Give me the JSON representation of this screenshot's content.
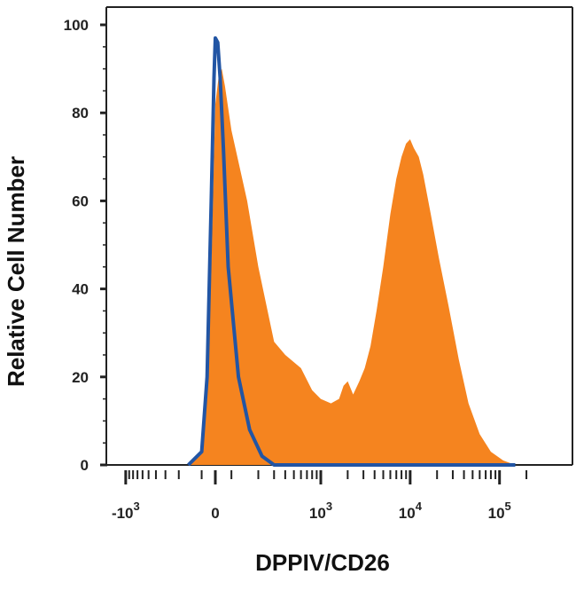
{
  "chart_data": {
    "type": "area",
    "title": "",
    "xlabel": "DPPIV/CD26",
    "ylabel": "Relative Cell Number",
    "x_scale": "biexponential",
    "x_tick_labels": [
      "-10^3",
      "0",
      "10^3",
      "10^4",
      "10^5"
    ],
    "x_ticks": [
      -1000,
      0,
      1000,
      10000,
      100000
    ],
    "y_ticks": [
      0,
      20,
      40,
      60,
      80,
      100
    ],
    "ylim": [
      0,
      100
    ],
    "grid": false,
    "legend": "none",
    "series": [
      {
        "style": "filled",
        "color": "#f5841f",
        "points": [
          [
            -150,
            0
          ],
          [
            -100,
            3
          ],
          [
            -60,
            15
          ],
          [
            -30,
            45
          ],
          [
            -10,
            70
          ],
          [
            0,
            82
          ],
          [
            20,
            88
          ],
          [
            40,
            90
          ],
          [
            60,
            86
          ],
          [
            100,
            76
          ],
          [
            150,
            60
          ],
          [
            200,
            45
          ],
          [
            300,
            28
          ],
          [
            400,
            25
          ],
          [
            600,
            22
          ],
          [
            800,
            17
          ],
          [
            1000,
            15
          ],
          [
            1300,
            14
          ],
          [
            1600,
            15
          ],
          [
            1800,
            18
          ],
          [
            2000,
            19
          ],
          [
            2300,
            16
          ],
          [
            2700,
            19
          ],
          [
            3100,
            22
          ],
          [
            3600,
            27
          ],
          [
            4200,
            35
          ],
          [
            5000,
            45
          ],
          [
            6000,
            57
          ],
          [
            7000,
            65
          ],
          [
            8000,
            70
          ],
          [
            9000,
            73
          ],
          [
            10000,
            74
          ],
          [
            11000,
            72
          ],
          [
            12500,
            70
          ],
          [
            14000,
            66
          ],
          [
            17000,
            57
          ],
          [
            21000,
            47
          ],
          [
            27000,
            36
          ],
          [
            35000,
            24
          ],
          [
            45000,
            14
          ],
          [
            60000,
            7
          ],
          [
            80000,
            3
          ],
          [
            110000,
            1
          ],
          [
            150000,
            0
          ]
        ]
      },
      {
        "style": "line",
        "color": "#2255a4",
        "points": [
          [
            -150,
            0
          ],
          [
            -100,
            3
          ],
          [
            -60,
            20
          ],
          [
            -30,
            60
          ],
          [
            -10,
            88
          ],
          [
            0,
            97
          ],
          [
            15,
            96
          ],
          [
            30,
            88
          ],
          [
            50,
            72
          ],
          [
            80,
            45
          ],
          [
            120,
            20
          ],
          [
            160,
            8
          ],
          [
            220,
            2
          ],
          [
            300,
            0
          ],
          [
            150000,
            0
          ]
        ]
      }
    ]
  }
}
